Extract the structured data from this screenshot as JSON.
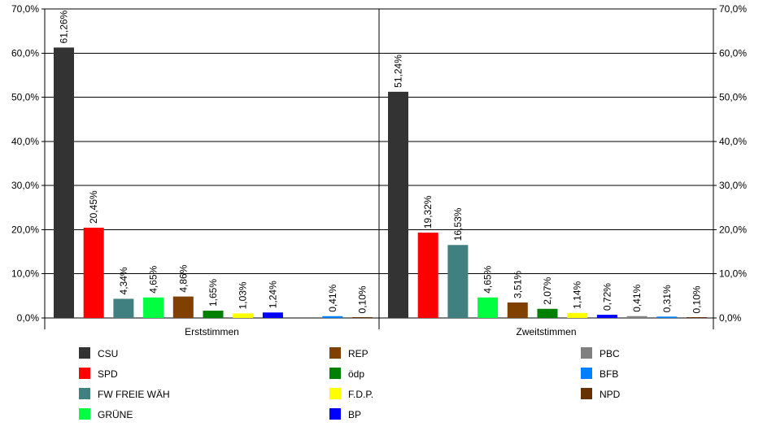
{
  "chart_data": {
    "type": "bar",
    "ylim": [
      0,
      70
    ],
    "yticks": [
      0,
      10,
      20,
      30,
      40,
      50,
      60,
      70
    ],
    "ytick_labels": [
      "0,0%",
      "10,0%",
      "20,0%",
      "30,0%",
      "40,0%",
      "50,0%",
      "60,0%",
      "70,0%"
    ],
    "grid": true,
    "legend_position": "bottom",
    "groups": [
      {
        "label": "Erststimmen",
        "bars": [
          {
            "party": "CSU",
            "value": 61.26,
            "label": "61,26%"
          },
          {
            "party": "SPD",
            "value": 20.45,
            "label": "20,45%"
          },
          {
            "party": "FW FREIE WÄH",
            "value": 4.34,
            "label": "4,34%"
          },
          {
            "party": "GRÜNE",
            "value": 4.65,
            "label": "4,65%"
          },
          {
            "party": "REP",
            "value": 4.86,
            "label": "4,86%"
          },
          {
            "party": "ödp",
            "value": 1.65,
            "label": "1,65%"
          },
          {
            "party": "F.D.P.",
            "value": 1.03,
            "label": "1,03%"
          },
          {
            "party": "BP",
            "value": 1.24,
            "label": "1,24%"
          },
          {
            "party": "PBC",
            "value": null,
            "label": ""
          },
          {
            "party": "BFB",
            "value": 0.41,
            "label": "0,41%"
          },
          {
            "party": "NPD",
            "value": 0.1,
            "label": "0,10%"
          }
        ]
      },
      {
        "label": "Zweitstimmen",
        "bars": [
          {
            "party": "CSU",
            "value": 51.24,
            "label": "51,24%"
          },
          {
            "party": "SPD",
            "value": 19.32,
            "label": "19,32%"
          },
          {
            "party": "FW FREIE WÄH",
            "value": 16.53,
            "label": "16,53%"
          },
          {
            "party": "GRÜNE",
            "value": 4.65,
            "label": "4,65%"
          },
          {
            "party": "REP",
            "value": 3.51,
            "label": "3,51%"
          },
          {
            "party": "ödp",
            "value": 2.07,
            "label": "2,07%"
          },
          {
            "party": "F.D.P.",
            "value": 1.14,
            "label": "1,14%"
          },
          {
            "party": "BP",
            "value": 0.72,
            "label": "0,72%"
          },
          {
            "party": "PBC",
            "value": 0.41,
            "label": "0,41%"
          },
          {
            "party": "BFB",
            "value": 0.31,
            "label": "0,31%"
          },
          {
            "party": "NPD",
            "value": 0.1,
            "label": "0,10%"
          }
        ]
      }
    ],
    "legend": [
      {
        "name": "CSU",
        "color": "#333333"
      },
      {
        "name": "SPD",
        "color": "#ff0000"
      },
      {
        "name": "FW FREIE WÄH",
        "color": "#408080"
      },
      {
        "name": "GRÜNE",
        "color": "#00ff40"
      },
      {
        "name": "REP",
        "color": "#804000"
      },
      {
        "name": "ödp",
        "color": "#008000"
      },
      {
        "name": "F.D.P.",
        "color": "#ffff00"
      },
      {
        "name": "BP",
        "color": "#0000ff"
      },
      {
        "name": "PBC",
        "color": "#808080"
      },
      {
        "name": "BFB",
        "color": "#0080ff"
      },
      {
        "name": "NPD",
        "color": "#663300"
      }
    ]
  }
}
